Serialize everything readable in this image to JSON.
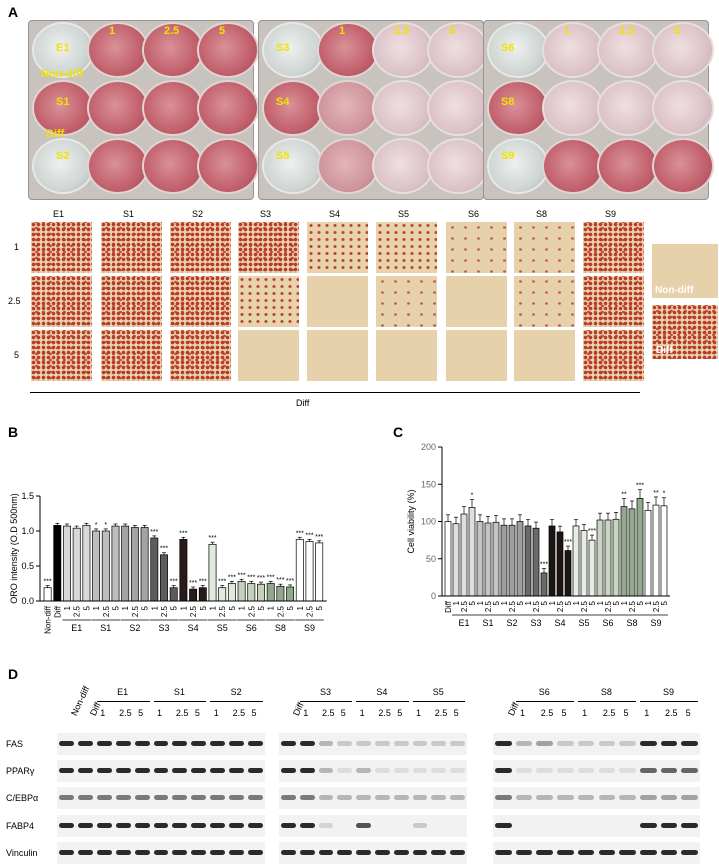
{
  "panels": {
    "a": "A",
    "b": "B",
    "c": "C",
    "d": "D"
  },
  "plates": [
    {
      "rows": [
        "E1",
        "S1",
        "S2"
      ],
      "side": [
        "Non-diff",
        "Diff"
      ]
    },
    {
      "rows": [
        "S3",
        "S4",
        "S5"
      ]
    },
    {
      "rows": [
        "S6",
        "S8",
        "S9"
      ]
    }
  ],
  "conc_labels": [
    "1",
    "2.5",
    "5"
  ],
  "micro": {
    "columns": [
      "E1",
      "S1",
      "S2",
      "S3",
      "S4",
      "S5",
      "S6",
      "S8",
      "S9"
    ],
    "rows": [
      "1",
      "2.5",
      "5"
    ],
    "diff_label": "Diff",
    "ctrl_nondiff": "Non-diff",
    "ctrl_diff": "Diff"
  },
  "chart_data": [
    {
      "type": "bar",
      "title": "",
      "xlabel": "",
      "ylabel": "ORO intensity (O.D 500nm)",
      "ylim": [
        0,
        1.5
      ],
      "yticks": [
        "0.0",
        "0.5",
        "1.0",
        "1.5"
      ],
      "controls": [
        {
          "name": "Non-diff",
          "value": 0.19,
          "sig": "***"
        },
        {
          "name": "Diff",
          "value": 1.08,
          "sig": ""
        }
      ],
      "groups": [
        "E1",
        "S1",
        "S2",
        "S3",
        "S4",
        "S5",
        "S6",
        "S8",
        "S9"
      ],
      "sub_labels": [
        "1",
        "2.5",
        "5"
      ],
      "values": [
        [
          1.07,
          1.04,
          1.08
        ],
        [
          1.0,
          1.0,
          1.07
        ],
        [
          1.07,
          1.05,
          1.05
        ],
        [
          0.9,
          0.66,
          0.19
        ],
        [
          0.88,
          0.17,
          0.19
        ],
        [
          0.81,
          0.19,
          0.25
        ],
        [
          0.28,
          0.25,
          0.24
        ],
        [
          0.25,
          0.21,
          0.2
        ],
        [
          0.88,
          0.85,
          0.83
        ]
      ],
      "sig": [
        [
          "",
          "",
          ""
        ],
        [
          "*",
          "*",
          ""
        ],
        [
          "",
          "",
          ""
        ],
        [
          "***",
          "***",
          "***"
        ],
        [
          "***",
          "***",
          "***"
        ],
        [
          "***",
          "***",
          "***"
        ],
        [
          "***",
          "***",
          "***"
        ],
        [
          "***",
          "***",
          "***"
        ],
        [
          "***",
          "***",
          "***"
        ]
      ]
    },
    {
      "type": "bar",
      "title": "",
      "xlabel": "",
      "ylabel": "Cell viability (%)",
      "ylim": [
        0,
        200
      ],
      "yticks": [
        "0",
        "50",
        "100",
        "150",
        "200"
      ],
      "controls": [
        {
          "name": "Diff",
          "value": 100,
          "sig": ""
        }
      ],
      "groups": [
        "E1",
        "S1",
        "S2",
        "S3",
        "S4",
        "S5",
        "S6",
        "S8",
        "S9"
      ],
      "sub_labels": [
        "1",
        "2.5",
        "5"
      ],
      "values": [
        [
          97,
          110,
          119
        ],
        [
          100,
          98,
          99
        ],
        [
          95,
          95,
          100
        ],
        [
          94,
          91,
          31
        ],
        [
          94,
          86,
          61
        ],
        [
          94,
          88,
          75
        ],
        [
          102,
          102,
          103
        ],
        [
          120,
          117,
          131
        ],
        [
          115,
          122,
          121
        ]
      ],
      "sig": [
        [
          "",
          "",
          "*"
        ],
        [
          "",
          "",
          ""
        ],
        [
          "",
          "",
          ""
        ],
        [
          "",
          "",
          "***"
        ],
        [
          "",
          "",
          "***"
        ],
        [
          "",
          "",
          "***"
        ],
        [
          "",
          "",
          ""
        ],
        [
          "**",
          "",
          "***"
        ],
        [
          "",
          "**",
          "*"
        ]
      ]
    }
  ],
  "western": {
    "proteins": [
      "FAS",
      "PPARγ",
      "C/EBPα",
      "FABP4",
      "Vinculin"
    ],
    "block1": {
      "controls": [
        "Non-diff",
        "Diff"
      ],
      "groups": [
        "E1",
        "S1",
        "S2"
      ]
    },
    "block2": {
      "controls": [
        "Diff"
      ],
      "groups": [
        "S3",
        "S4",
        "S5"
      ]
    },
    "block3": {
      "controls": [
        "Diff"
      ],
      "groups": [
        "S6",
        "S8",
        "S9"
      ]
    }
  }
}
